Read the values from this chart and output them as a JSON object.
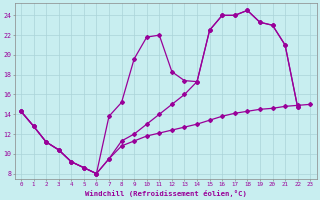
{
  "bg_color": "#c8eef0",
  "line_color": "#990099",
  "grid_color": "#c0e0e0",
  "xlabel": "Windchill (Refroidissement éolien,°C)",
  "xlim": [
    -0.5,
    23.5
  ],
  "ylim": [
    7.5,
    25.2
  ],
  "xticks": [
    0,
    1,
    2,
    3,
    4,
    5,
    6,
    7,
    8,
    9,
    10,
    11,
    12,
    13,
    14,
    15,
    16,
    17,
    18,
    19,
    20,
    21,
    22,
    23
  ],
  "yticks": [
    8,
    10,
    12,
    14,
    16,
    18,
    20,
    22,
    24
  ],
  "line1_x": [
    0,
    1,
    2,
    3,
    4,
    5,
    6,
    7,
    8,
    9,
    10,
    11,
    12,
    13,
    14,
    15,
    16,
    17,
    18,
    19,
    20,
    21,
    22
  ],
  "line1_y": [
    14.3,
    12.8,
    11.2,
    10.4,
    9.2,
    8.6,
    8.0,
    13.8,
    15.2,
    19.6,
    21.8,
    22.0,
    18.3,
    17.4,
    17.3,
    22.5,
    24.0,
    24.0,
    24.5,
    23.3,
    23.0,
    21.0,
    14.7
  ],
  "line2_x": [
    0,
    1,
    2,
    3,
    4,
    5,
    6,
    7,
    8,
    9,
    10,
    11,
    12,
    13,
    14,
    15,
    16,
    17,
    18,
    19,
    20,
    21,
    22
  ],
  "line2_y": [
    14.3,
    12.8,
    11.2,
    10.4,
    9.2,
    8.6,
    8.0,
    9.5,
    11.3,
    12.0,
    13.0,
    14.0,
    15.0,
    16.0,
    17.3,
    22.5,
    24.0,
    24.0,
    24.5,
    23.3,
    23.0,
    21.0,
    14.7
  ],
  "line3_x": [
    0,
    1,
    2,
    3,
    4,
    5,
    6,
    7,
    8,
    9,
    10,
    11,
    12,
    13,
    14,
    15,
    16,
    17,
    18,
    19,
    20,
    21,
    22,
    23
  ],
  "line3_y": [
    14.3,
    12.8,
    11.2,
    10.4,
    9.2,
    8.6,
    8.0,
    9.5,
    10.8,
    11.3,
    11.8,
    12.1,
    12.4,
    12.7,
    13.0,
    13.4,
    13.8,
    14.1,
    14.3,
    14.5,
    14.6,
    14.8,
    14.9,
    15.0
  ],
  "marker": "D",
  "markersize": 2.0,
  "linewidth": 0.9
}
